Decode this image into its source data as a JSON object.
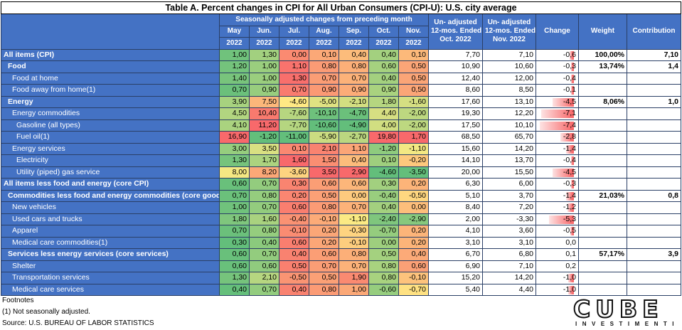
{
  "title": "Table A. Percent changes in CPI for All Urban Consumers (CPI-U): U.S. city average",
  "header": {
    "seasonal_group": "Seasonally adjusted changes from preceding month",
    "months": [
      [
        "May",
        "2022"
      ],
      [
        "Jun.",
        "2022"
      ],
      [
        "Jul.",
        "2022"
      ],
      [
        "Aug.",
        "2022"
      ],
      [
        "Sep.",
        "2022"
      ],
      [
        "Oct.",
        "2022"
      ],
      [
        "Nov.",
        "2022"
      ]
    ],
    "unadj_oct": [
      "Un- adjusted",
      "12-mos. Ended",
      "Oct. 2022"
    ],
    "unadj_nov": [
      "Un- adjusted",
      "12-mos. Ended",
      "Nov. 2022"
    ],
    "change": "Change",
    "weight": "Weight",
    "contribution": "Contribution"
  },
  "rows": [
    {
      "label": "All items (CPI)",
      "indent": 0,
      "bold": true,
      "monthly": [
        "1,00",
        "1,30",
        "0,00",
        "0,10",
        "0,40",
        "0,40",
        "0,10"
      ],
      "monthly_num": [
        1.0,
        1.3,
        0.0,
        0.1,
        0.4,
        0.4,
        0.1
      ],
      "oct": "7,70",
      "nov": "7,10",
      "change": "-0,6",
      "change_num": -0.6,
      "weight": "100,00%",
      "contribution": "7,10"
    },
    {
      "label": "Food",
      "indent": 1,
      "bold": true,
      "monthly": [
        "1,20",
        "1,00",
        "1,10",
        "0,80",
        "0,80",
        "0,60",
        "0,50"
      ],
      "monthly_num": [
        1.2,
        1.0,
        1.1,
        0.8,
        0.8,
        0.6,
        0.5
      ],
      "oct": "10,90",
      "nov": "10,60",
      "change": "-0,3",
      "change_num": -0.3,
      "weight": "13,74%",
      "contribution": "1,4"
    },
    {
      "label": "Food at home",
      "indent": 2,
      "bold": false,
      "monthly": [
        "1,40",
        "1,00",
        "1,30",
        "0,70",
        "0,70",
        "0,40",
        "0,50"
      ],
      "monthly_num": [
        1.4,
        1.0,
        1.3,
        0.7,
        0.7,
        0.4,
        0.5
      ],
      "oct": "12,40",
      "nov": "12,00",
      "change": "-0,4",
      "change_num": -0.4,
      "weight": "",
      "contribution": ""
    },
    {
      "label": "Food away from home(1)",
      "indent": 2,
      "bold": false,
      "monthly": [
        "0,70",
        "0,90",
        "0,70",
        "0,90",
        "0,90",
        "0,90",
        "0,50"
      ],
      "monthly_num": [
        0.7,
        0.9,
        0.7,
        0.9,
        0.9,
        0.9,
        0.5
      ],
      "oct": "8,60",
      "nov": "8,50",
      "change": "-0,1",
      "change_num": -0.1,
      "weight": "",
      "contribution": ""
    },
    {
      "label": "Energy",
      "indent": 1,
      "bold": true,
      "monthly": [
        "3,90",
        "7,50",
        "-4,60",
        "-5,00",
        "-2,10",
        "1,80",
        "-1,60"
      ],
      "monthly_num": [
        3.9,
        7.5,
        -4.6,
        -5.0,
        -2.1,
        1.8,
        -1.6
      ],
      "oct": "17,60",
      "nov": "13,10",
      "change": "-4,5",
      "change_num": -4.5,
      "weight": "8,06%",
      "contribution": "1,0"
    },
    {
      "label": "Energy commodities",
      "indent": 2,
      "bold": false,
      "monthly": [
        "4,50",
        "10,40",
        "-7,60",
        "-10,10",
        "-4,70",
        "4,40",
        "-2,00"
      ],
      "monthly_num": [
        4.5,
        10.4,
        -7.6,
        -10.1,
        -4.7,
        4.4,
        -2.0
      ],
      "oct": "19,30",
      "nov": "12,20",
      "change": "-7,1",
      "change_num": -7.1,
      "weight": "",
      "contribution": ""
    },
    {
      "label": "Gasoline (all types)",
      "indent": 3,
      "bold": false,
      "monthly": [
        "4,10",
        "11,20",
        "-7,70",
        "-10,60",
        "-4,90",
        "4,00",
        "-2,00"
      ],
      "monthly_num": [
        4.1,
        11.2,
        -7.7,
        -10.6,
        -4.9,
        4.0,
        -2.0
      ],
      "oct": "17,50",
      "nov": "10,10",
      "change": "-7,4",
      "change_num": -7.4,
      "weight": "",
      "contribution": ""
    },
    {
      "label": "Fuel oil(1)",
      "indent": 3,
      "bold": false,
      "monthly": [
        "16,90",
        "-1,20",
        "-11,00",
        "-5,90",
        "-2,70",
        "19,80",
        "1,70"
      ],
      "monthly_num": [
        16.9,
        -1.2,
        -11.0,
        -5.9,
        -2.7,
        19.8,
        1.7
      ],
      "oct": "68,50",
      "nov": "65,70",
      "change": "-2,8",
      "change_num": -2.8,
      "weight": "",
      "contribution": ""
    },
    {
      "label": "Energy services",
      "indent": 2,
      "bold": false,
      "monthly": [
        "3,00",
        "3,50",
        "0,10",
        "2,10",
        "1,10",
        "-1,20",
        "-1,10"
      ],
      "monthly_num": [
        3.0,
        3.5,
        0.1,
        2.1,
        1.1,
        -1.2,
        -1.1
      ],
      "oct": "15,60",
      "nov": "14,20",
      "change": "-1,4",
      "change_num": -1.4,
      "weight": "",
      "contribution": ""
    },
    {
      "label": "Electricity",
      "indent": 3,
      "bold": false,
      "monthly": [
        "1,30",
        "1,70",
        "1,60",
        "1,50",
        "0,40",
        "0,10",
        "-0,20"
      ],
      "monthly_num": [
        1.3,
        1.7,
        1.6,
        1.5,
        0.4,
        0.1,
        -0.2
      ],
      "oct": "14,10",
      "nov": "13,70",
      "change": "-0,4",
      "change_num": -0.4,
      "weight": "",
      "contribution": ""
    },
    {
      "label": "Utility (piped) gas service",
      "indent": 3,
      "bold": false,
      "monthly": [
        "8,00",
        "8,20",
        "-3,60",
        "3,50",
        "2,90",
        "-4,60",
        "-3,50"
      ],
      "monthly_num": [
        8.0,
        8.2,
        -3.6,
        3.5,
        2.9,
        -4.6,
        -3.5
      ],
      "oct": "20,00",
      "nov": "15,50",
      "change": "-4,5",
      "change_num": -4.5,
      "weight": "",
      "contribution": ""
    },
    {
      "label": "All items less food and energy (core CPI)",
      "indent": 0,
      "bold": true,
      "monthly": [
        "0,60",
        "0,70",
        "0,30",
        "0,60",
        "0,60",
        "0,30",
        "0,20"
      ],
      "monthly_num": [
        0.6,
        0.7,
        0.3,
        0.6,
        0.6,
        0.3,
        0.2
      ],
      "oct": "6,30",
      "nov": "6,00",
      "change": "-0,3",
      "change_num": -0.3,
      "weight": "",
      "contribution": ""
    },
    {
      "label": "Commodities less food and energy commodities (core goods)",
      "indent": 1,
      "bold": true,
      "monthly": [
        "0,70",
        "0,80",
        "0,20",
        "0,50",
        "0,00",
        "-0,40",
        "-0,50"
      ],
      "monthly_num": [
        0.7,
        0.8,
        0.2,
        0.5,
        0.0,
        -0.4,
        -0.5
      ],
      "oct": "5,10",
      "nov": "3,70",
      "change": "-1,4",
      "change_num": -1.4,
      "weight": "21,03%",
      "contribution": "0,8"
    },
    {
      "label": "New vehicles",
      "indent": 2,
      "bold": false,
      "monthly": [
        "1,00",
        "0,70",
        "0,60",
        "0,80",
        "0,70",
        "0,40",
        "0,00"
      ],
      "monthly_num": [
        1.0,
        0.7,
        0.6,
        0.8,
        0.7,
        0.4,
        0.0
      ],
      "oct": "8,40",
      "nov": "7,20",
      "change": "-1,2",
      "change_num": -1.2,
      "weight": "",
      "contribution": ""
    },
    {
      "label": "Used cars and trucks",
      "indent": 2,
      "bold": false,
      "monthly": [
        "1,80",
        "1,60",
        "-0,40",
        "-0,10",
        "-1,10",
        "-2,40",
        "-2,90"
      ],
      "monthly_num": [
        1.8,
        1.6,
        -0.4,
        -0.1,
        -1.1,
        -2.4,
        -2.9
      ],
      "oct": "2,00",
      "nov": "-3,30",
      "change": "-5,3",
      "change_num": -5.3,
      "weight": "",
      "contribution": ""
    },
    {
      "label": "Apparel",
      "indent": 2,
      "bold": false,
      "monthly": [
        "0,70",
        "0,80",
        "-0,10",
        "0,20",
        "-0,30",
        "-0,70",
        "0,20"
      ],
      "monthly_num": [
        0.7,
        0.8,
        -0.1,
        0.2,
        -0.3,
        -0.7,
        0.2
      ],
      "oct": "4,10",
      "nov": "3,60",
      "change": "-0,5",
      "change_num": -0.5,
      "weight": "",
      "contribution": ""
    },
    {
      "label": "Medical care commodities(1)",
      "indent": 2,
      "bold": false,
      "monthly": [
        "0,30",
        "0,40",
        "0,60",
        "0,20",
        "-0,10",
        "0,00",
        "0,20"
      ],
      "monthly_num": [
        0.3,
        0.4,
        0.6,
        0.2,
        -0.1,
        0.0,
        0.2
      ],
      "oct": "3,10",
      "nov": "3,10",
      "change": "0,0",
      "change_num": 0.0,
      "weight": "",
      "contribution": ""
    },
    {
      "label": "Services less energy services (core services)",
      "indent": 1,
      "bold": true,
      "monthly": [
        "0,60",
        "0,70",
        "0,40",
        "0,60",
        "0,80",
        "0,50",
        "0,40"
      ],
      "monthly_num": [
        0.6,
        0.7,
        0.4,
        0.6,
        0.8,
        0.5,
        0.4
      ],
      "oct": "6,70",
      "nov": "6,80",
      "change": "0,1",
      "change_num": 0.1,
      "weight": "57,17%",
      "contribution": "3,9"
    },
    {
      "label": "Shelter",
      "indent": 2,
      "bold": false,
      "monthly": [
        "0,60",
        "0,60",
        "0,50",
        "0,70",
        "0,70",
        "0,80",
        "0,60"
      ],
      "monthly_num": [
        0.6,
        0.6,
        0.5,
        0.7,
        0.7,
        0.8,
        0.6
      ],
      "oct": "6,90",
      "nov": "7,10",
      "change": "0,2",
      "change_num": 0.2,
      "weight": "",
      "contribution": ""
    },
    {
      "label": "Transportation services",
      "indent": 2,
      "bold": false,
      "monthly": [
        "1,30",
        "2,10",
        "-0,50",
        "0,50",
        "1,90",
        "0,80",
        "-0,10"
      ],
      "monthly_num": [
        1.3,
        2.1,
        -0.5,
        0.5,
        1.9,
        0.8,
        -0.1
      ],
      "oct": "15,20",
      "nov": "14,20",
      "change": "-1,0",
      "change_num": -1.0,
      "weight": "",
      "contribution": ""
    },
    {
      "label": "Medical care services",
      "indent": 2,
      "bold": false,
      "monthly": [
        "0,40",
        "0,70",
        "0,40",
        "0,80",
        "1,00",
        "-0,60",
        "-0,70"
      ],
      "monthly_num": [
        0.4,
        0.7,
        0.4,
        0.8,
        1.0,
        -0.6,
        -0.7
      ],
      "oct": "5,40",
      "nov": "4,40",
      "change": "-1,0",
      "change_num": -1.0,
      "weight": "",
      "contribution": ""
    }
  ],
  "footer": {
    "line1": "Footnotes",
    "line2": "(1) Not seasonally adjusted.",
    "line3": "Source: U.S. BUREAU OF LABOR STATISTICS"
  },
  "logo": {
    "main": "CUBE",
    "sub": "INVESTIMENTI"
  },
  "colors": {
    "header_blue": "#4472c4",
    "bar_red": "#f8696b",
    "green": "#63be7b",
    "yellow": "#ffeb84",
    "red": "#f8696b"
  }
}
